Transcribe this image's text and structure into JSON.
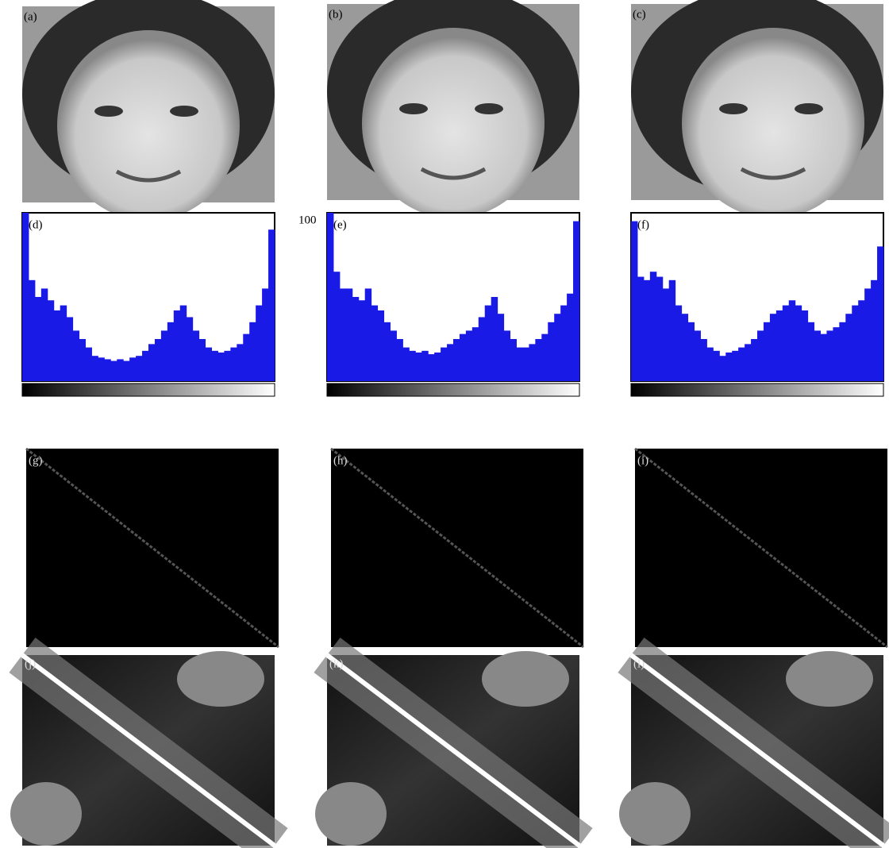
{
  "faces": [
    {
      "label": "(a)"
    },
    {
      "label": "(b)"
    },
    {
      "label": "(c)"
    }
  ],
  "histograms": [
    {
      "label": "(d)",
      "color": "#1a1ae6",
      "values": [
        100,
        60,
        50,
        55,
        48,
        42,
        45,
        38,
        30,
        25,
        20,
        15,
        14,
        13,
        12,
        13,
        12,
        14,
        15,
        18,
        22,
        25,
        30,
        35,
        42,
        45,
        38,
        30,
        25,
        20,
        18,
        17,
        18,
        20,
        22,
        28,
        35,
        45,
        55,
        90
      ]
    },
    {
      "label": "(e)",
      "y_label": "100",
      "color": "#1a1ae6",
      "values": [
        100,
        65,
        55,
        55,
        50,
        48,
        55,
        45,
        42,
        35,
        30,
        25,
        20,
        18,
        17,
        18,
        16,
        17,
        20,
        22,
        25,
        28,
        30,
        32,
        38,
        45,
        50,
        40,
        30,
        25,
        20,
        20,
        22,
        25,
        28,
        35,
        40,
        45,
        52,
        95
      ]
    },
    {
      "label": "(f)",
      "color": "#1a1ae6",
      "values": [
        95,
        62,
        60,
        65,
        62,
        55,
        60,
        45,
        40,
        35,
        30,
        25,
        20,
        18,
        15,
        17,
        18,
        20,
        22,
        25,
        30,
        35,
        40,
        42,
        45,
        48,
        45,
        42,
        35,
        30,
        28,
        30,
        32,
        35,
        40,
        45,
        48,
        55,
        60,
        80
      ]
    }
  ],
  "matrices": [
    {
      "label": "(g)"
    },
    {
      "label": "(h)"
    },
    {
      "label": "(i)"
    }
  ],
  "similarity": [
    {
      "label": "(j)"
    },
    {
      "label": "(k)"
    },
    {
      "label": "(l)"
    }
  ]
}
